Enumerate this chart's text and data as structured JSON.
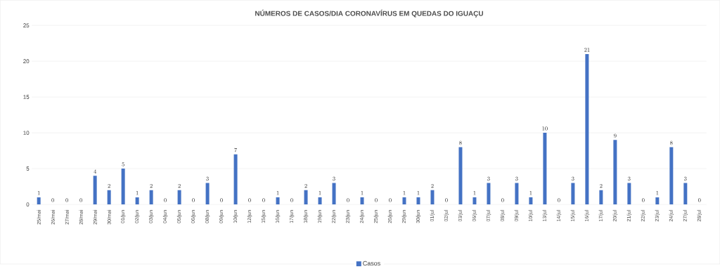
{
  "chart_data": {
    "type": "bar",
    "title": "NÚMEROS DE  CASOS/DIA CORONAVÍRUS EM QUEDAS DO IGUAÇU",
    "categories": [
      "25/mai",
      "26/mai",
      "27/mai",
      "28/mai",
      "29/mai",
      "30/mai",
      "01/jun",
      "02/jun",
      "03/jun",
      "04/jun",
      "05/jun",
      "06/jun",
      "08/jun",
      "09/jun",
      "10/jun",
      "12/jun",
      "15/jun",
      "16/jun",
      "17/jun",
      "18/jun",
      "19/jun",
      "22/jun",
      "23/jun",
      "24/jun",
      "25/jun",
      "26/jun",
      "29/jun",
      "30/jun",
      "01/jul",
      "02/jul",
      "03/jul",
      "06/jul",
      "07/jul",
      "08/jul",
      "09/jul",
      "10/jul",
      "13/jul",
      "14/jul",
      "15/jul",
      "16/jul",
      "17/jul",
      "20/jul",
      "21/jul",
      "22/jul",
      "23/jul",
      "24/jul",
      "27/jul",
      "28/jul"
    ],
    "series": [
      {
        "name": "Casos",
        "color": "#4472c4",
        "values": [
          1,
          0,
          0,
          0,
          4,
          2,
          5,
          1,
          2,
          0,
          2,
          0,
          3,
          0,
          7,
          0,
          0,
          1,
          0,
          2,
          1,
          3,
          0,
          1,
          0,
          0,
          1,
          1,
          2,
          0,
          8,
          1,
          3,
          0,
          3,
          1,
          10,
          0,
          3,
          21,
          2,
          9,
          3,
          0,
          1,
          8,
          3,
          0
        ]
      }
    ],
    "ylim": [
      0,
      25
    ],
    "yticks": [
      0,
      5,
      10,
      15,
      20,
      25
    ],
    "grid": "y",
    "legend": "bottom",
    "data_labels": true
  }
}
